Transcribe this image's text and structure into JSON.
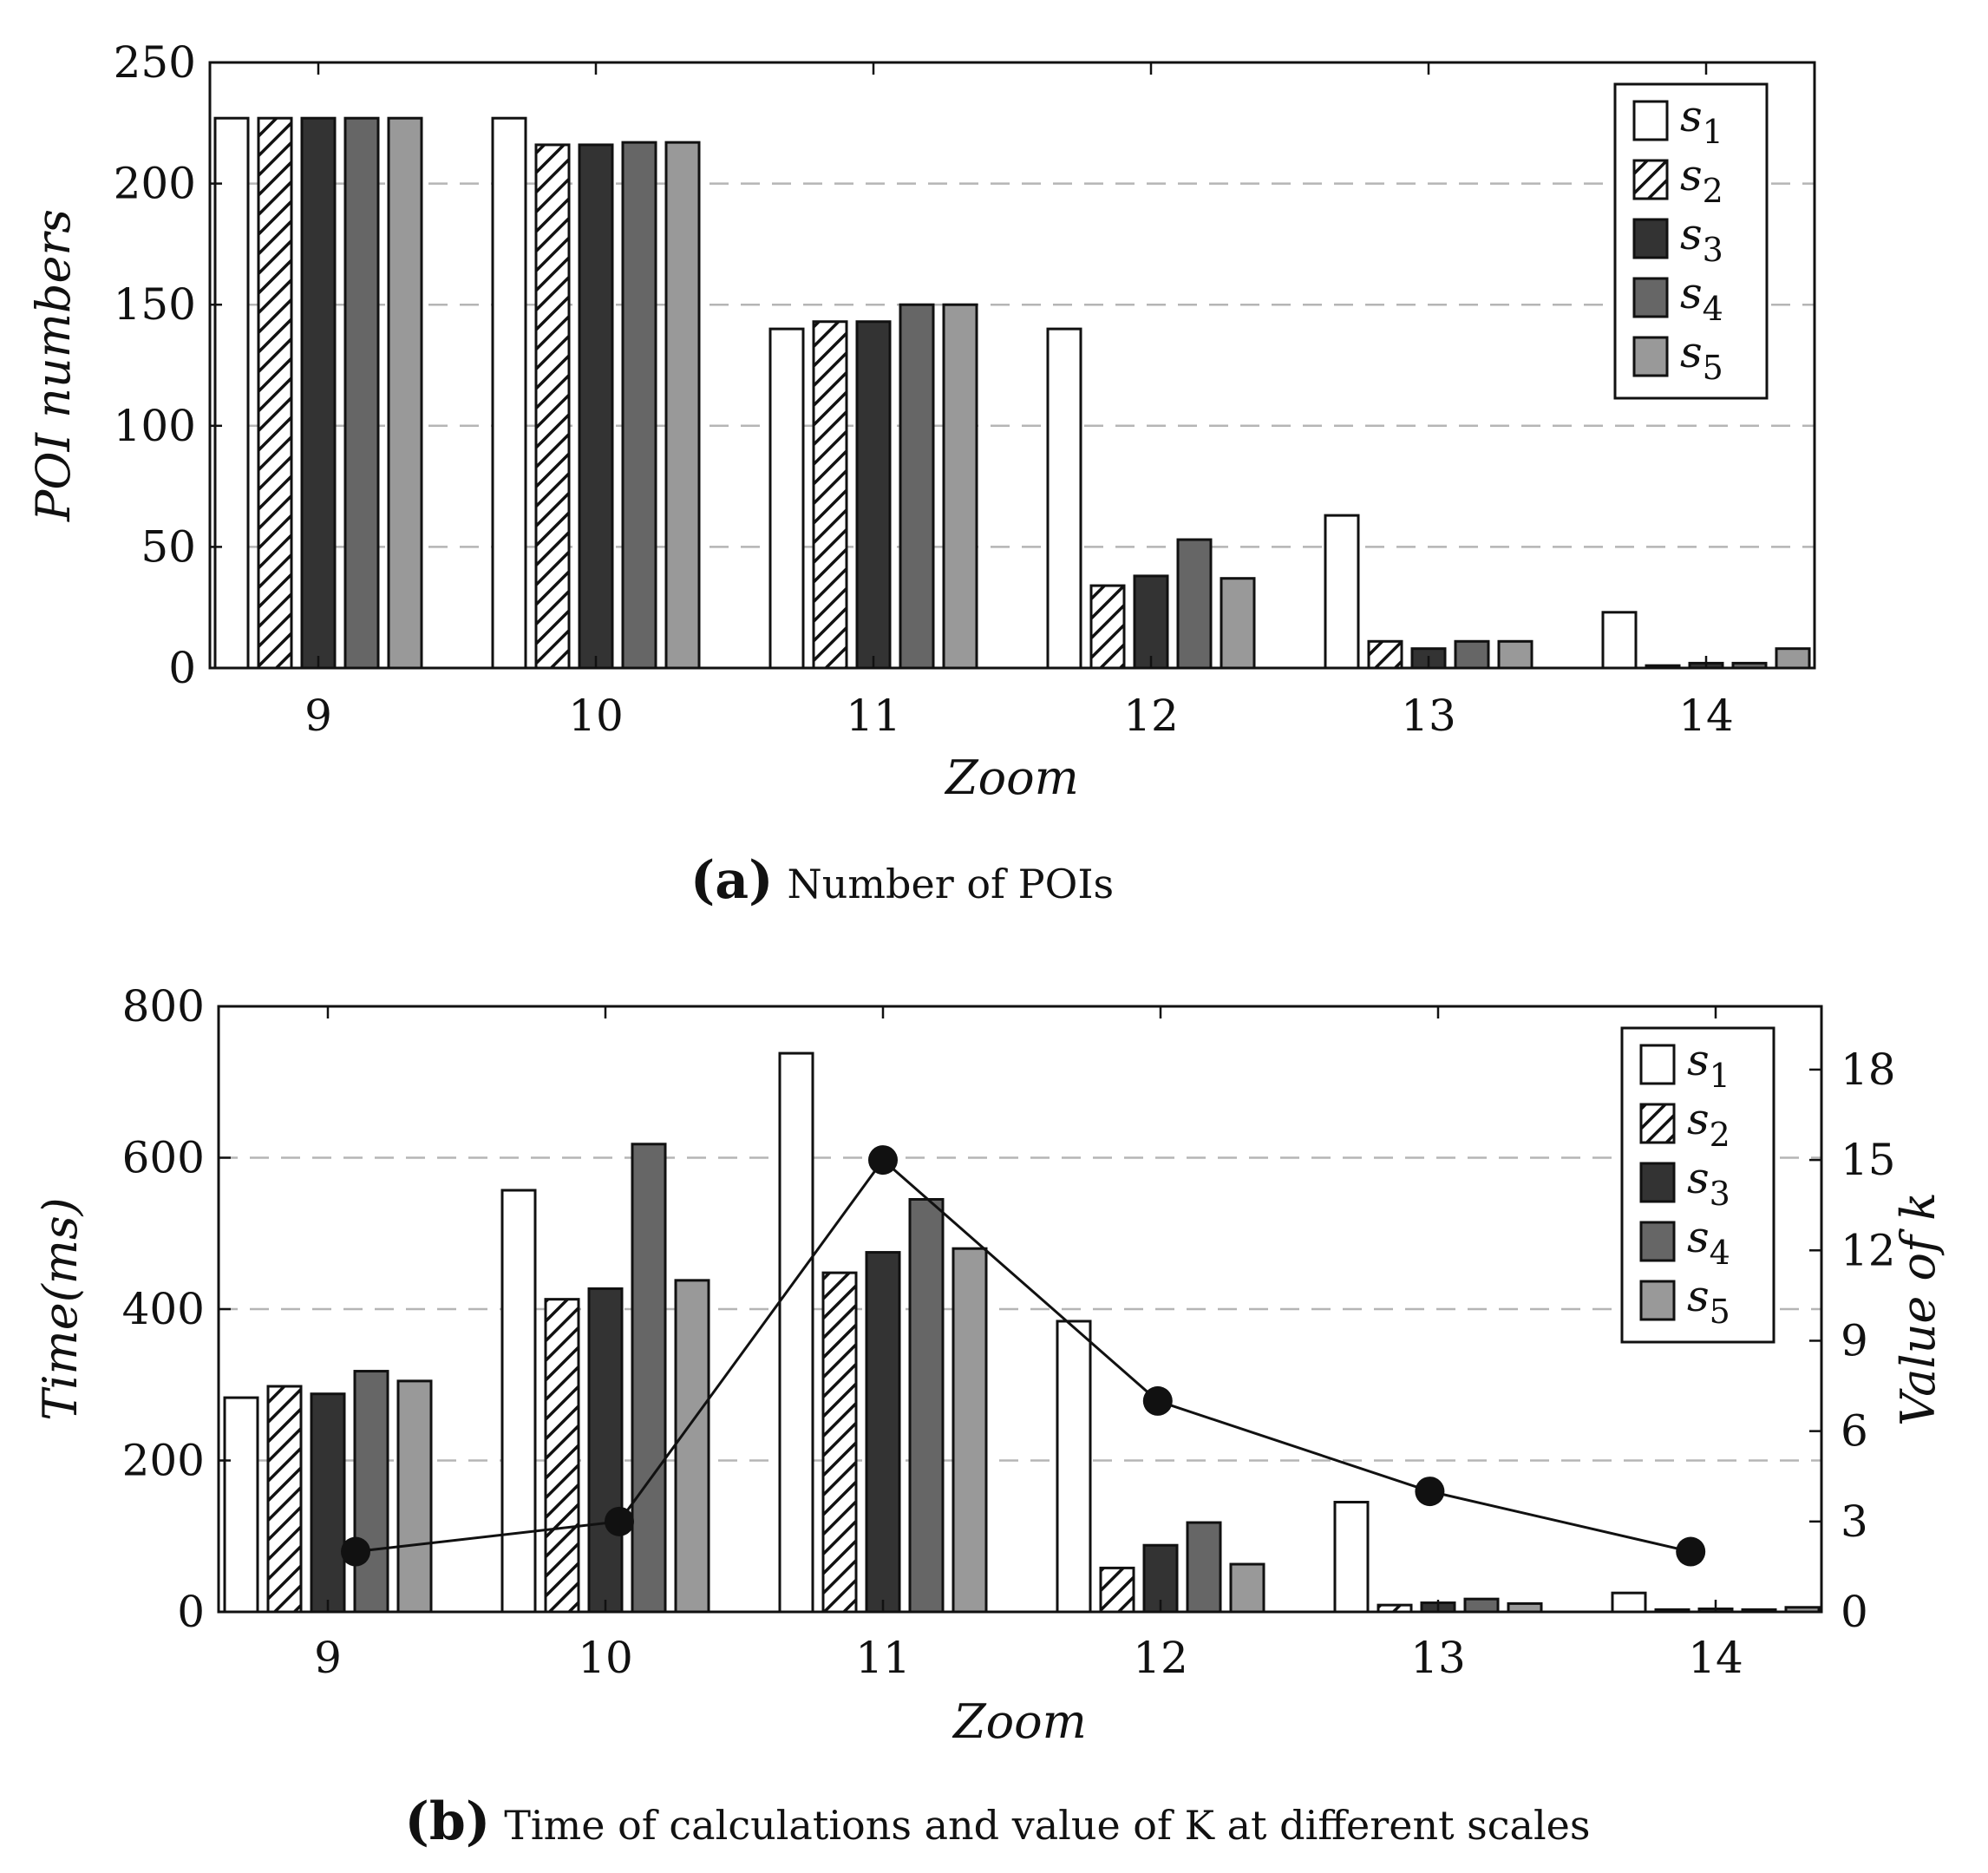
{
  "chart_data": [
    {
      "type": "bar",
      "title": "",
      "caption_tag": "(a)",
      "caption_text": "Number of POIs",
      "xlabel": "Zoom",
      "ylabel": "POI numbers",
      "categories": [
        "9",
        "10",
        "11",
        "12",
        "13",
        "14"
      ],
      "ylim": [
        0,
        250
      ],
      "yticks": [
        "0",
        "50",
        "100",
        "150",
        "200",
        "250"
      ],
      "grid": "horizontal dashed",
      "legend_position": "top-right",
      "series": [
        {
          "name": "s",
          "sub": "1",
          "values": [
            227,
            227,
            140,
            140,
            63,
            23
          ]
        },
        {
          "name": "s",
          "sub": "2",
          "values": [
            227,
            216,
            143,
            34,
            11,
            1
          ]
        },
        {
          "name": "s",
          "sub": "3",
          "values": [
            227,
            216,
            143,
            38,
            8,
            2
          ]
        },
        {
          "name": "s",
          "sub": "4",
          "values": [
            227,
            217,
            150,
            53,
            11,
            2
          ]
        },
        {
          "name": "s",
          "sub": "5",
          "values": [
            227,
            217,
            150,
            37,
            11,
            8
          ]
        }
      ]
    },
    {
      "type": "bar",
      "title": "",
      "caption_tag": "(b)",
      "caption_text": "Time of calculations and value of K at different scales",
      "xlabel": "Zoom",
      "ylabel": "Time(ms)",
      "y2label": "Value of k",
      "categories": [
        "9",
        "10",
        "11",
        "12",
        "13",
        "14"
      ],
      "ylim": [
        0,
        800
      ],
      "yticks": [
        "0",
        "200",
        "400",
        "600",
        "800"
      ],
      "y2lim": [
        0,
        20.1
      ],
      "y2ticks": [
        "0",
        "3",
        "6",
        "9",
        "12",
        "15",
        "18"
      ],
      "grid": "horizontal dashed",
      "legend_position": "top-right",
      "series": [
        {
          "name": "s",
          "sub": "1",
          "values": [
            283,
            557,
            738,
            384,
            145,
            25
          ]
        },
        {
          "name": "s",
          "sub": "2",
          "values": [
            298,
            413,
            448,
            58,
            9,
            3
          ]
        },
        {
          "name": "s",
          "sub": "3",
          "values": [
            288,
            427,
            475,
            88,
            12,
            4
          ]
        },
        {
          "name": "s",
          "sub": "4",
          "values": [
            318,
            618,
            545,
            118,
            17,
            3
          ]
        },
        {
          "name": "s",
          "sub": "5",
          "values": [
            305,
            438,
            480,
            63,
            11,
            6
          ]
        }
      ],
      "line_series": {
        "name": "k",
        "axis": "right",
        "x": [
          9.1,
          10.05,
          11.0,
          11.99,
          12.97,
          13.91
        ],
        "values": [
          2,
          3,
          15,
          7,
          4,
          2
        ]
      }
    }
  ]
}
